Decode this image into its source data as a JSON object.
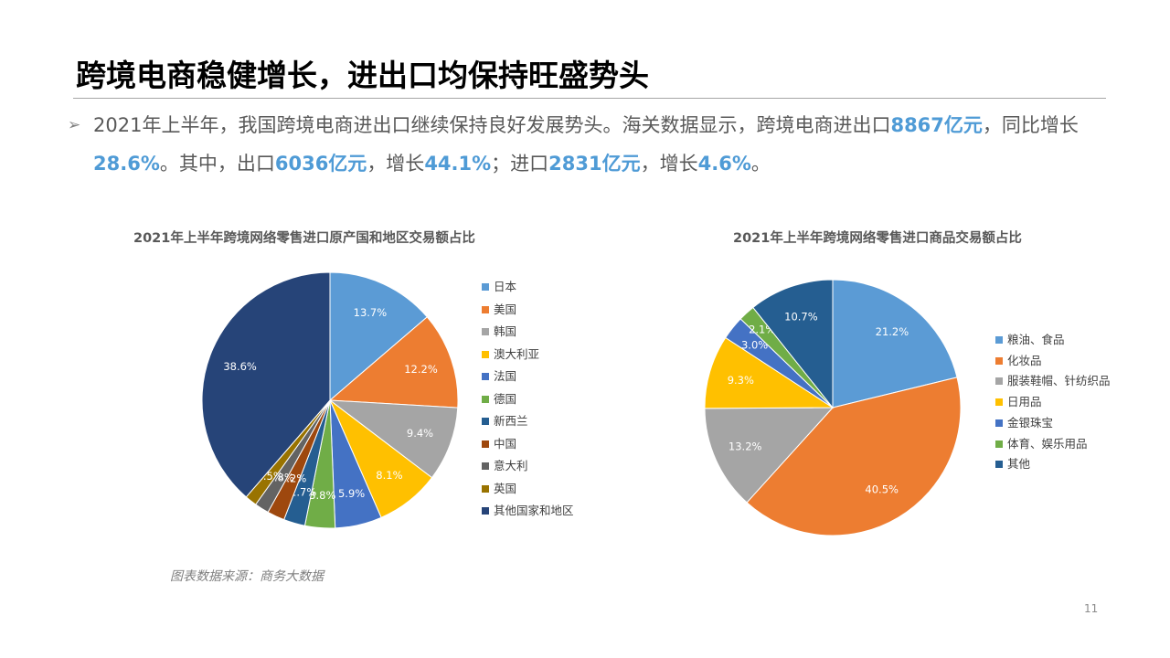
{
  "slide": {
    "title": "跨境电商稳健增长，进出口均保持旺盛势头",
    "bullet_arrow": "➢",
    "bullet": {
      "p1": "2021年上半年，我国跨境电商进出口继续保持良好发展势头。海关数据显示，跨境电商进出口",
      "v1": "8867亿元",
      "p2": "，同比增长",
      "v2": "28.6%",
      "p3": "。其中，出口",
      "v3": "6036亿元",
      "p4": "，增长",
      "v4": "44.1%",
      "p5": "；进口",
      "v5": "2831亿元",
      "p6": "，增长",
      "v6": "4.6%",
      "p7": "。"
    },
    "source": "图表数据来源：商务大数据",
    "page_number": "11",
    "accent_color": "#4f9bd6"
  },
  "chart_data": [
    {
      "type": "pie",
      "title": "2021年上半年跨境网络零售进口原产国和地区交易额占比",
      "legend_position": "right",
      "categories": [
        "日本",
        "美国",
        "韩国",
        "澳大利亚",
        "法国",
        "德国",
        "新西兰",
        "中国",
        "意大利",
        "英国",
        "其他国家和地区"
      ],
      "values": [
        13.7,
        12.2,
        9.4,
        8.1,
        5.9,
        3.8,
        2.7,
        2.2,
        1.8,
        1.5,
        38.6
      ],
      "labels": [
        "13.7%",
        "12.2%",
        "9.4%",
        "8.1%",
        "5.9%",
        "3.8%",
        "2.7%",
        "2.2%",
        "1.8%",
        "1.5%",
        "38.6%"
      ],
      "colors": [
        "#5b9bd5",
        "#ed7d31",
        "#a5a5a5",
        "#ffc000",
        "#4472c4",
        "#70ad47",
        "#255e91",
        "#9e480e",
        "#636363",
        "#997300",
        "#264478"
      ]
    },
    {
      "type": "pie",
      "title": "2021年上半年跨境网络零售进口商品交易额占比",
      "legend_position": "right",
      "categories": [
        "粮油、食品",
        "化妆品",
        "服装鞋帽、针纺织品",
        "日用品",
        "金银珠宝",
        "体育、娱乐用品",
        "其他"
      ],
      "values": [
        21.2,
        40.5,
        13.2,
        9.3,
        3.0,
        2.1,
        10.7
      ],
      "labels": [
        "21.2%",
        "40.5%",
        "13.2%",
        "9.3%",
        "3.0%",
        "2.1%",
        "10.7%"
      ],
      "colors": [
        "#5b9bd5",
        "#ed7d31",
        "#a5a5a5",
        "#ffc000",
        "#4472c4",
        "#70ad47",
        "#255e91"
      ]
    }
  ]
}
